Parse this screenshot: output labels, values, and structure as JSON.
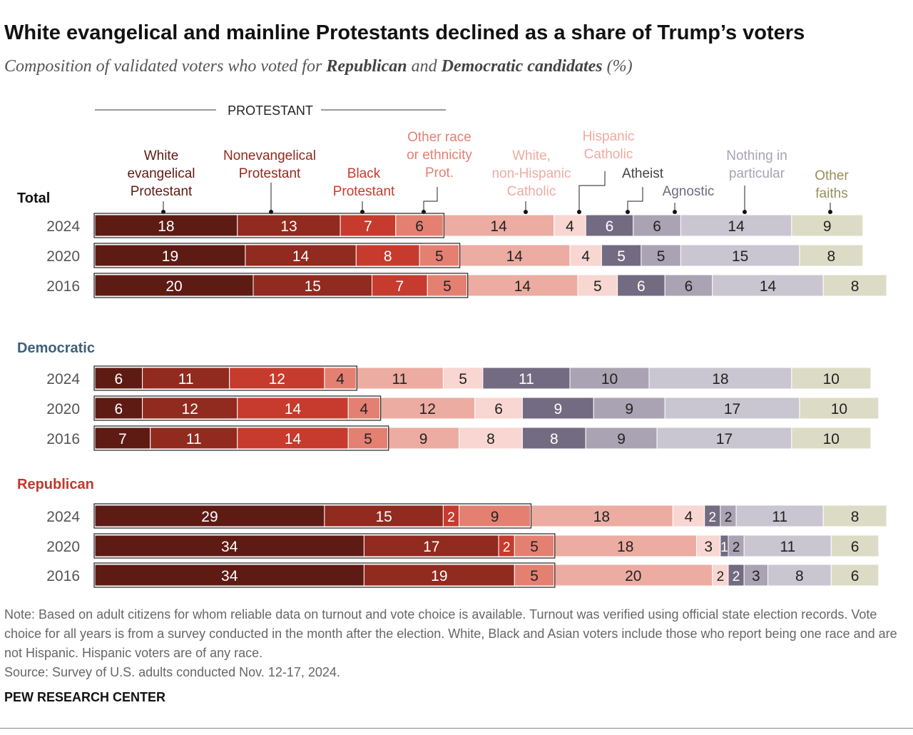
{
  "title": "White evangelical and mainline Protestants declined as a share of Trump’s voters",
  "subtitle": {
    "pre": "Composition of validated voters who voted for ",
    "rep": "Republican",
    "mid": " and ",
    "dem": "Democratic candidates",
    "post": " (%)"
  },
  "note": "Note: Based on adult citizens for whom reliable data on turnout and vote choice is available. Turnout was verified using official state election records. Vote choice for all years is from a survey conducted in the month after the election. White, Black and Asian voters include those who report being one race and are not Hispanic. Hispanic voters are of any race.",
  "source": "Source: Survey of U.S. adults conducted Nov. 12-17, 2024.",
  "brand": "PEW RESEARCH CENTER",
  "chart_data": {
    "type": "bar",
    "orientation": "horizontal-stacked",
    "group_header": "PROTESTANT",
    "categories": [
      "White evangelical Protestant",
      "Nonevangelical Protestant",
      "Black Protestant",
      "Other race or ethnicity Prot.",
      "White, non-Hispanic Catholic",
      "Hispanic Catholic",
      "Atheist",
      "Agnostic",
      "Nothing in particular",
      "Other faiths"
    ],
    "colors": [
      "#5e1b14",
      "#912a1f",
      "#c63b2d",
      "#e48072",
      "#ecaca2",
      "#f8d6d1",
      "#736b81",
      "#a9a3b3",
      "#c9c5d1",
      "#dcdcc6"
    ],
    "panels": [
      {
        "name": "Total",
        "rows": [
          {
            "year": "2024",
            "values": [
              18,
              13,
              7,
              6,
              14,
              4,
              6,
              6,
              14,
              9
            ]
          },
          {
            "year": "2020",
            "values": [
              19,
              14,
              8,
              5,
              14,
              4,
              5,
              5,
              15,
              8
            ]
          },
          {
            "year": "2016",
            "values": [
              20,
              15,
              7,
              5,
              14,
              5,
              6,
              6,
              14,
              8
            ]
          }
        ]
      },
      {
        "name": "Democratic",
        "rows": [
          {
            "year": "2024",
            "values": [
              6,
              11,
              12,
              4,
              11,
              5,
              11,
              10,
              18,
              10
            ]
          },
          {
            "year": "2020",
            "values": [
              6,
              12,
              14,
              4,
              12,
              6,
              9,
              9,
              17,
              10
            ]
          },
          {
            "year": "2016",
            "values": [
              7,
              11,
              14,
              5,
              9,
              8,
              8,
              9,
              17,
              10
            ]
          }
        ]
      },
      {
        "name": "Republican",
        "rows": [
          {
            "year": "2024",
            "values": [
              29,
              15,
              2,
              9,
              18,
              4,
              2,
              2,
              11,
              8
            ]
          },
          {
            "year": "2020",
            "values": [
              34,
              17,
              2,
              5,
              18,
              3,
              1,
              2,
              11,
              6
            ]
          },
          {
            "year": "2016",
            "values": [
              34,
              19,
              null,
              5,
              20,
              2,
              2,
              3,
              8,
              6
            ]
          }
        ]
      }
    ]
  }
}
